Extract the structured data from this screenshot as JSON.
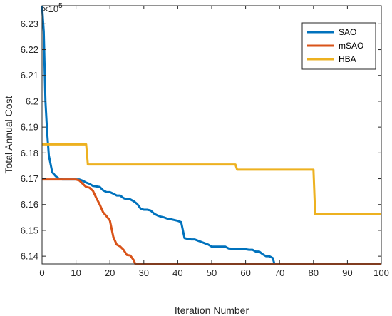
{
  "chart_data": {
    "type": "line",
    "title": "",
    "xlabel": "Iteration Number",
    "ylabel": "Total Annual Cost",
    "y_multiplier": "×10",
    "y_multiplier_exp": "5",
    "xlim": [
      0,
      100
    ],
    "ylim": [
      6.137,
      6.237
    ],
    "x_ticks": [
      0,
      10,
      20,
      30,
      40,
      50,
      60,
      70,
      80,
      90,
      100
    ],
    "x_tick_labels": [
      "0",
      "10",
      "20",
      "30",
      "40",
      "50",
      "60",
      "70",
      "80",
      "90",
      "100"
    ],
    "y_ticks": [
      6.14,
      6.15,
      6.16,
      6.17,
      6.18,
      6.19,
      6.2,
      6.21,
      6.22,
      6.23
    ],
    "y_tick_labels": [
      "6.14",
      "6.15",
      "6.16",
      "6.17",
      "6.18",
      "6.19",
      "6.2",
      "6.21",
      "6.22",
      "6.23"
    ],
    "grid": false,
    "legend_position": "top-right",
    "series": [
      {
        "name": "SAO",
        "color": "#0072BD",
        "x": [
          0,
          0.5,
          1,
          1.5,
          2,
          3,
          4,
          5,
          6,
          7,
          8,
          9,
          10,
          11,
          12,
          13,
          14,
          15,
          16,
          17,
          18,
          19,
          20,
          21,
          22,
          23,
          24,
          25,
          26,
          27,
          28,
          29,
          30,
          31,
          32,
          33,
          34,
          35,
          36,
          37,
          38,
          39,
          40,
          41,
          42,
          43,
          44,
          45,
          46,
          47,
          48,
          49,
          50,
          51,
          52,
          53,
          54,
          55,
          56,
          57,
          58,
          59,
          60,
          61,
          62,
          63,
          64,
          65,
          66,
          67,
          68,
          68.5
        ],
        "y": [
          6.237,
          6.227,
          6.2,
          6.188,
          6.179,
          6.1725,
          6.171,
          6.17,
          6.1697,
          6.1697,
          6.1697,
          6.1697,
          6.1697,
          6.1697,
          6.1692,
          6.1685,
          6.168,
          6.1672,
          6.167,
          6.1668,
          6.1655,
          6.1648,
          6.1648,
          6.1642,
          6.1635,
          6.1635,
          6.1625,
          6.162,
          6.162,
          6.1613,
          6.1603,
          6.1585,
          6.158,
          6.158,
          6.1577,
          6.1565,
          6.1558,
          6.1553,
          6.155,
          6.1545,
          6.1543,
          6.154,
          6.1537,
          6.1532,
          6.147,
          6.1467,
          6.1465,
          6.1465,
          6.146,
          6.1455,
          6.145,
          6.1445,
          6.1437,
          6.1437,
          6.1437,
          6.1437,
          6.1437,
          6.143,
          6.1429,
          6.1428,
          6.1428,
          6.1427,
          6.1427,
          6.1425,
          6.1425,
          6.1418,
          6.1418,
          6.1408,
          6.14,
          6.14,
          6.1393,
          6.137
        ]
      },
      {
        "name": "mSAO",
        "color": "#D95319",
        "x": [
          0,
          10,
          11,
          12,
          13,
          14,
          15,
          16,
          17,
          18,
          19,
          20,
          21,
          22,
          23,
          24,
          25,
          26,
          27,
          27.5,
          100
        ],
        "y": [
          6.1697,
          6.1697,
          6.1693,
          6.168,
          6.1668,
          6.1665,
          6.1653,
          6.1625,
          6.16,
          6.157,
          6.1555,
          6.1538,
          6.1475,
          6.1445,
          6.1438,
          6.1425,
          6.1405,
          6.1403,
          6.1385,
          6.137,
          6.137
        ]
      },
      {
        "name": "HBA",
        "color": "#EDB120",
        "x": [
          0,
          13,
          13.5,
          57,
          57.5,
          80,
          80.5,
          100
        ],
        "y": [
          6.1833,
          6.1833,
          6.1755,
          6.1755,
          6.1735,
          6.1735,
          6.1563,
          6.1563
        ]
      }
    ]
  }
}
